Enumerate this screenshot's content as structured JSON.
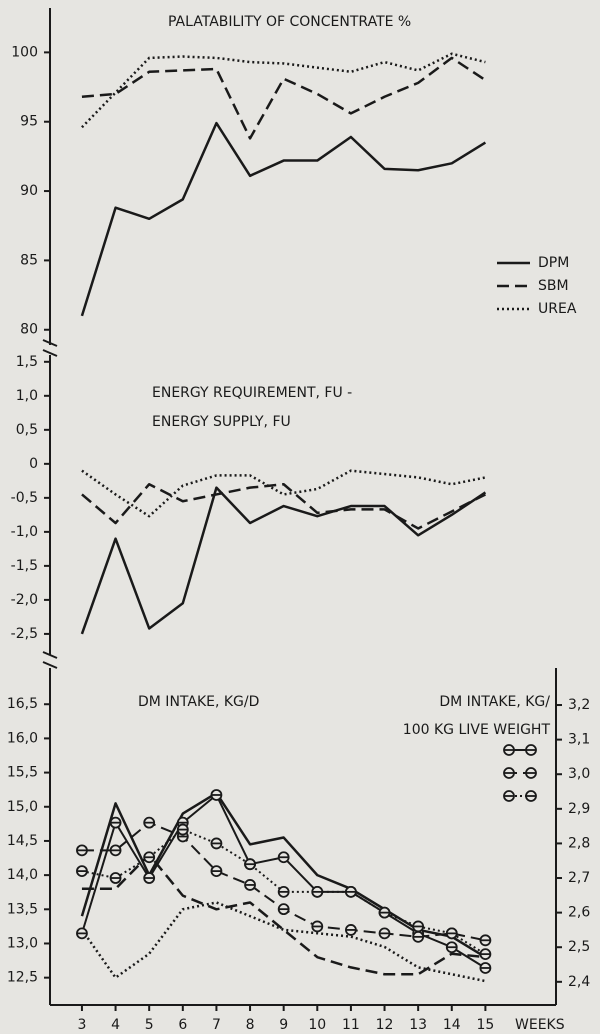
{
  "chart_data": [
    {
      "type": "line",
      "title": "PALATABILITY OF CONCENTRATE %",
      "x": [
        3,
        4,
        5,
        6,
        7,
        8,
        9,
        10,
        11,
        12,
        13,
        14,
        15
      ],
      "xlim": [
        2.05,
        17.1
      ],
      "ylim": [
        78.9,
        103.2
      ],
      "yticks": [
        80,
        85,
        90,
        95,
        100
      ],
      "legend": "right",
      "series": [
        {
          "name": "DPM",
          "color": "#1a1a1a",
          "style": "solid",
          "values": [
            81,
            88.8,
            88,
            89.4,
            94.9,
            91.1,
            92.2,
            92.2,
            93.9,
            91.6,
            91.5,
            92,
            93.5
          ]
        },
        {
          "name": "SBM",
          "color": "#1a1a1a",
          "style": "dashed",
          "values": [
            96.8,
            97,
            98.6,
            98.7,
            98.8,
            93.8,
            98.1,
            97,
            95.6,
            96.8,
            97.8,
            99.6,
            98
          ]
        },
        {
          "name": "UREA",
          "color": "#1a1a1a",
          "style": "dotted",
          "values": [
            94.6,
            97.1,
            99.6,
            99.7,
            99.6,
            99.3,
            99.2,
            98.9,
            98.6,
            99.3,
            98.7,
            99.9,
            99.3
          ]
        }
      ]
    },
    {
      "type": "line",
      "title": [
        "ENERGY REQUIREMENT, FU -",
        "ENERGY SUPPLY, FU"
      ],
      "x": [
        3,
        4,
        5,
        6,
        7,
        8,
        9,
        10,
        11,
        12,
        13,
        14,
        15
      ],
      "xlim": [
        2.05,
        17.1
      ],
      "ylim": [
        -2.81,
        1.6
      ],
      "yticks": [
        {
          "value": 1.5,
          "label": "1,5"
        },
        {
          "value": 1,
          "label": "1,0"
        },
        {
          "value": 0.5,
          "label": "0,5"
        },
        0,
        {
          "value": -0.5,
          "label": "-0,5"
        },
        {
          "value": -1,
          "label": "-1,0"
        },
        {
          "value": -1.5,
          "label": "-1,5"
        },
        {
          "value": -2,
          "label": "-2,0"
        },
        {
          "value": -2.5,
          "label": "-2,5"
        }
      ],
      "series": [
        {
          "color": "#1a1a1a",
          "style": "solid",
          "values": [
            -2.5,
            -1.1,
            -2.42,
            -2.05,
            -0.35,
            -0.87,
            -0.62,
            -0.77,
            -0.62,
            -0.62,
            -1.05,
            -0.75,
            -0.42
          ]
        },
        {
          "color": "#1a1a1a",
          "style": "dashed",
          "values": [
            -0.45,
            -0.87,
            -0.3,
            -0.55,
            -0.45,
            -0.35,
            -0.3,
            -0.72,
            -0.67,
            -0.67,
            -0.95,
            -0.7,
            -0.45
          ]
        },
        {
          "color": "#1a1a1a",
          "style": "dotted",
          "values": [
            -0.1,
            -0.45,
            -0.77,
            -0.32,
            -0.17,
            -0.17,
            -0.45,
            -0.37,
            -0.1,
            -0.15,
            -0.2,
            -0.3,
            -0.2
          ]
        }
      ]
    },
    {
      "type": "line",
      "ylabel": "DM INTAKE, KG/D",
      "y2label": [
        "DM INTAKE, KG/",
        "100 KG LIVE WEIGHT"
      ],
      "xlabel": "WEEKS",
      "x": [
        3,
        4,
        5,
        6,
        7,
        8,
        9,
        10,
        11,
        12,
        13,
        14,
        15
      ],
      "xlim": [
        2.05,
        17.1
      ],
      "xticks": [
        3,
        4,
        5,
        6,
        7,
        8,
        9,
        10,
        11,
        12,
        13,
        14,
        15
      ],
      "ylim": [
        12.1,
        17.03
      ],
      "yticks": [
        {
          "value": 12.5,
          "label": "12,5"
        },
        {
          "value": 13,
          "label": "13,0"
        },
        {
          "value": 13.5,
          "label": "13,5"
        },
        {
          "value": 14,
          "label": "14,0"
        },
        {
          "value": 14.5,
          "label": "14,5"
        },
        {
          "value": 15,
          "label": "15,0"
        },
        {
          "value": 15.5,
          "label": "15,5"
        },
        {
          "value": 16,
          "label": "16,0"
        },
        {
          "value": 16.5,
          "label": "16,5"
        }
      ],
      "y2lim": [
        2.333,
        3.307
      ],
      "y2ticks": [
        {
          "value": 2.4,
          "label": "2,4"
        },
        {
          "value": 2.5,
          "label": "2,5"
        },
        {
          "value": 2.6,
          "label": "2,6"
        },
        {
          "value": 2.7,
          "label": "2,7"
        },
        {
          "value": 2.8,
          "label": "2,8"
        },
        {
          "value": 2.9,
          "label": "2,9"
        },
        {
          "value": 3.0,
          "label": "3,0"
        },
        {
          "value": 3.1,
          "label": "3,1"
        },
        {
          "value": 3.2,
          "label": "3,2"
        }
      ],
      "legend": "upper right",
      "series": [
        {
          "color": "#1a1a1a",
          "style": "solid",
          "values": [
            13.4,
            15.05,
            14.0,
            14.9,
            15.2,
            14.45,
            14.55,
            14.0,
            13.8,
            13.5,
            13.2,
            13.1,
            12.8
          ]
        },
        {
          "color": "#1a1a1a",
          "style": "dashed",
          "values": [
            13.8,
            13.8,
            14.3,
            13.7,
            13.5,
            13.6,
            13.2,
            12.8,
            12.65,
            12.55,
            12.55,
            12.85,
            12.8
          ]
        },
        {
          "color": "#1a1a1a",
          "style": "dotted",
          "values": [
            13.2,
            12.5,
            12.85,
            13.5,
            13.6,
            13.4,
            13.2,
            13.15,
            13.1,
            12.95,
            12.65,
            12.55,
            12.45
          ]
        },
        {
          "color": "#1a1a1a",
          "style": "solid",
          "marker": "circle",
          "axis": "y2",
          "values": [
            2.54,
            2.86,
            2.7,
            2.86,
            2.94,
            2.74,
            2.76,
            2.66,
            2.66,
            2.6,
            2.54,
            2.5,
            2.44
          ]
        },
        {
          "color": "#1a1a1a",
          "style": "dashed",
          "marker": "circle",
          "axis": "y2",
          "values": [
            2.78,
            2.78,
            2.86,
            2.82,
            2.72,
            2.68,
            2.61,
            2.56,
            2.55,
            2.54,
            2.53,
            2.54,
            2.52
          ]
        },
        {
          "color": "#1a1a1a",
          "style": "dotted",
          "marker": "circle",
          "axis": "y2",
          "values": [
            2.72,
            2.7,
            2.76,
            2.84,
            2.8,
            2.74,
            2.66,
            2.66,
            2.66,
            2.6,
            2.56,
            2.54,
            2.48
          ]
        }
      ]
    }
  ]
}
